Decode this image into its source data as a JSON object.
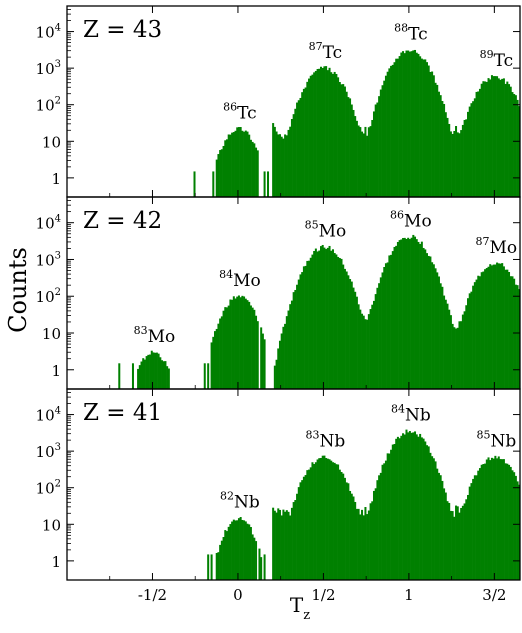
{
  "figure": {
    "ylabel": "Counts",
    "xlabel_main": "T",
    "xlabel_sub": "z",
    "bar_color": "#008000"
  },
  "chart_data": [
    {
      "type": "bar",
      "panel_label": "Z = 43",
      "y_scale": "log",
      "ylim": [
        0.3,
        50000
      ],
      "xlim": [
        -1,
        1.65
      ],
      "y_ticks": [
        {
          "base": "1",
          "exp": ""
        },
        {
          "base": "10",
          "exp": ""
        },
        {
          "base": "10",
          "exp": "2"
        },
        {
          "base": "10",
          "exp": "3"
        },
        {
          "base": "10",
          "exp": "4"
        }
      ],
      "peaks": [
        {
          "mass": "86",
          "element": "Tc",
          "x": 0.0,
          "height": 22,
          "width": 0.065,
          "cutoff": 0.13
        },
        {
          "mass": "87",
          "element": "Tc",
          "x": 0.5,
          "height": 1000,
          "width": 0.075
        },
        {
          "mass": "88",
          "element": "Tc",
          "x": 1.0,
          "height": 3200,
          "width": 0.075
        },
        {
          "mass": "89",
          "element": "Tc",
          "x": 1.5,
          "height": 600,
          "width": 0.075
        }
      ],
      "isolated_bins": [
        -0.26,
        -0.15,
        -0.13,
        -0.11,
        0.15,
        0.17
      ],
      "gap_bins": [
        0.12,
        0.16
      ],
      "noise_range": [
        0.2,
        1.62
      ],
      "noise_level": [
        12,
        30
      ]
    },
    {
      "type": "bar",
      "panel_label": "Z = 42",
      "y_scale": "log",
      "ylim": [
        0.3,
        50000
      ],
      "xlim": [
        -1,
        1.65
      ],
      "y_ticks": [
        {
          "base": "1",
          "exp": ""
        },
        {
          "base": "10",
          "exp": ""
        },
        {
          "base": "10",
          "exp": "2"
        },
        {
          "base": "10",
          "exp": "3"
        },
        {
          "base": "10",
          "exp": "4"
        }
      ],
      "peaks": [
        {
          "mass": "83",
          "element": "Mo",
          "x": -0.5,
          "height": 3,
          "width": 0.06,
          "cutoff": 0.12
        },
        {
          "mass": "84",
          "element": "Mo",
          "x": 0.0,
          "height": 100,
          "width": 0.065,
          "cutoff": 0.16
        },
        {
          "mass": "85",
          "element": "Mo",
          "x": 0.5,
          "height": 2200,
          "width": 0.075
        },
        {
          "mass": "86",
          "element": "Mo",
          "x": 1.0,
          "height": 4200,
          "width": 0.075
        },
        {
          "mass": "87",
          "element": "Mo",
          "x": 1.5,
          "height": 800,
          "width": 0.075
        }
      ],
      "isolated_bins": [
        -0.7,
        -0.62,
        -0.2,
        -0.18,
        -0.15
      ],
      "gap_bins": [
        0.12,
        0.18
      ],
      "noise_range": [
        0.25,
        1.62
      ],
      "noise_level": [
        3,
        8
      ]
    },
    {
      "type": "bar",
      "panel_label": "Z = 41",
      "y_scale": "log",
      "ylim": [
        0.3,
        50000
      ],
      "xlim": [
        -1,
        1.65
      ],
      "y_ticks": [
        {
          "base": "1",
          "exp": ""
        },
        {
          "base": "10",
          "exp": ""
        },
        {
          "base": "10",
          "exp": "2"
        },
        {
          "base": "10",
          "exp": "3"
        },
        {
          "base": "10",
          "exp": "4"
        }
      ],
      "x_ticks": [
        {
          "value": -0.5,
          "label": "-1/2"
        },
        {
          "value": 0,
          "label": "0"
        },
        {
          "value": 0.5,
          "label": "1/2"
        },
        {
          "value": 1,
          "label": "1"
        },
        {
          "value": 1.5,
          "label": "3/2"
        }
      ],
      "peaks": [
        {
          "mass": "82",
          "element": "Nb",
          "x": 0.0,
          "height": 15,
          "width": 0.06,
          "cutoff": 0.14
        },
        {
          "mass": "83",
          "element": "Nb",
          "x": 0.5,
          "height": 700,
          "width": 0.075
        },
        {
          "mass": "84",
          "element": "Nb",
          "x": 1.0,
          "height": 3600,
          "width": 0.075
        },
        {
          "mass": "85",
          "element": "Nb",
          "x": 1.5,
          "height": 700,
          "width": 0.075
        }
      ],
      "isolated_bins": [
        -0.18,
        -0.16,
        0.15
      ],
      "gap_bins": [
        0.11
      ],
      "noise_range": [
        0.2,
        1.62
      ],
      "noise_level": [
        15,
        30
      ]
    }
  ]
}
